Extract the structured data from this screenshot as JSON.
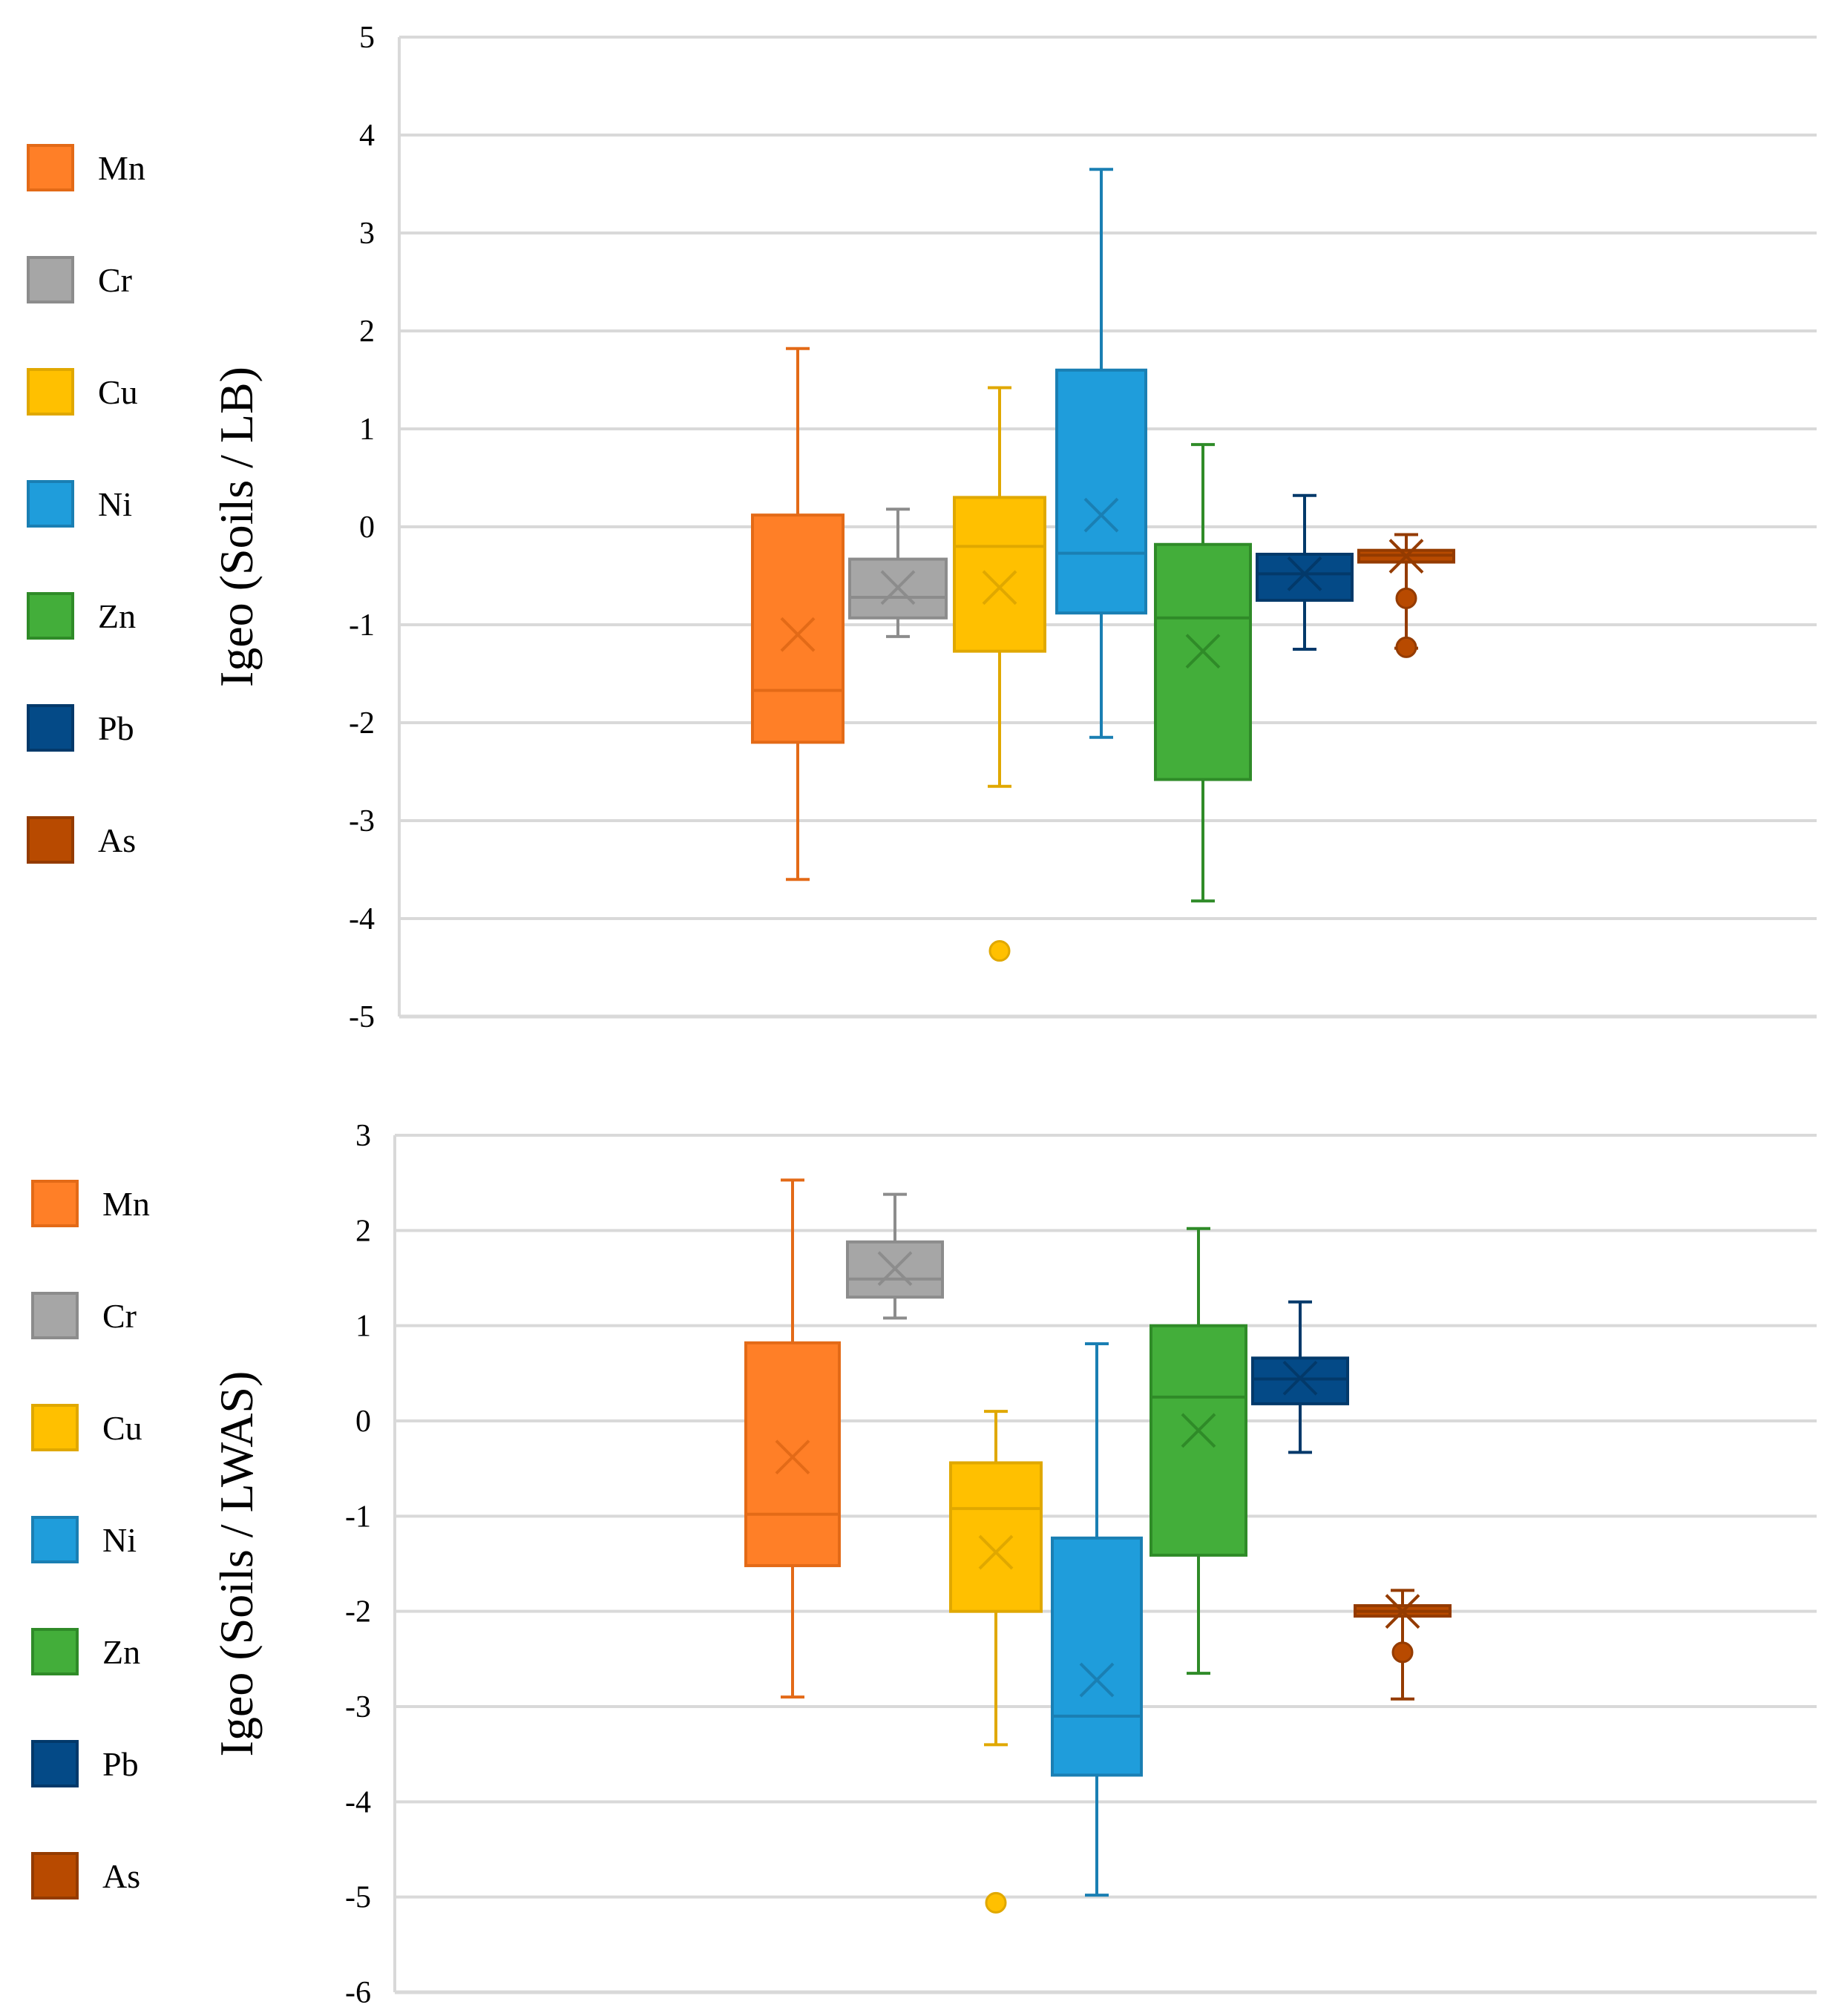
{
  "chart_data": [
    {
      "type": "box",
      "ylabel": "Igeo (Soils / LB)",
      "ylim": [
        -5,
        5
      ],
      "yticks": [
        5,
        4,
        3,
        2,
        1,
        0,
        -1,
        -2,
        -3,
        -4,
        -5
      ],
      "grid": true,
      "legend_position": "left",
      "series": [
        {
          "name": "Mn",
          "color": "#FF7F27",
          "edge": "#E36A17",
          "min": -3.6,
          "q1": -2.2,
          "median": -1.67,
          "q3": 0.12,
          "max": 1.82,
          "mean": -1.1,
          "outliers": []
        },
        {
          "name": "Cr",
          "color": "#A6A6A6",
          "edge": "#8C8C8C",
          "min": -1.12,
          "q1": -0.93,
          "median": -0.72,
          "q3": -0.33,
          "max": 0.18,
          "mean": -0.62,
          "outliers": []
        },
        {
          "name": "Cu",
          "color": "#FFC000",
          "edge": "#E0A800",
          "min": -2.65,
          "q1": -1.27,
          "median": -0.2,
          "q3": 0.3,
          "max": 1.42,
          "mean": -0.62,
          "outliers": [
            -4.33
          ]
        },
        {
          "name": "Ni",
          "color": "#1F9DDB",
          "edge": "#1A7FB3",
          "min": -2.15,
          "q1": -0.88,
          "median": -0.27,
          "q3": 1.6,
          "max": 3.65,
          "mean": 0.12,
          "outliers": []
        },
        {
          "name": "Zn",
          "color": "#43AE3A",
          "edge": "#2F8B28",
          "min": -3.82,
          "q1": -2.58,
          "median": -0.93,
          "q3": -0.18,
          "max": 0.84,
          "mean": -1.27,
          "outliers": []
        },
        {
          "name": "Pb",
          "color": "#044A87",
          "edge": "#03396A",
          "min": -1.25,
          "q1": -0.75,
          "median": -0.48,
          "q3": -0.28,
          "max": 0.32,
          "mean": -0.48,
          "outliers": []
        },
        {
          "name": "As",
          "color": "#B84A00",
          "edge": "#943B00",
          "min": -1.24,
          "q1": -0.36,
          "median": -0.29,
          "q3": -0.24,
          "max": -0.08,
          "mean": -0.3,
          "outliers": [
            -0.73,
            -1.23
          ]
        }
      ]
    },
    {
      "type": "box",
      "ylabel": "Igeo (Soils / LWAS)",
      "ylim": [
        -6,
        3
      ],
      "yticks": [
        3,
        2,
        1,
        0,
        -1,
        -2,
        -3,
        -4,
        -5,
        -6
      ],
      "grid": true,
      "legend_position": "left",
      "series": [
        {
          "name": "Mn",
          "color": "#FF7F27",
          "edge": "#E36A17",
          "min": -2.9,
          "q1": -1.52,
          "median": -0.98,
          "q3": 0.82,
          "max": 2.53,
          "mean": -0.38,
          "outliers": []
        },
        {
          "name": "Cr",
          "color": "#A6A6A6",
          "edge": "#8C8C8C",
          "min": 1.08,
          "q1": 1.3,
          "median": 1.49,
          "q3": 1.88,
          "max": 2.38,
          "mean": 1.6,
          "outliers": []
        },
        {
          "name": "Cu",
          "color": "#FFC000",
          "edge": "#E0A800",
          "min": -3.4,
          "q1": -2.0,
          "median": -0.92,
          "q3": -0.44,
          "max": 0.1,
          "mean": -1.38,
          "outliers": [
            -5.06
          ]
        },
        {
          "name": "Ni",
          "color": "#1F9DDB",
          "edge": "#1A7FB3",
          "min": -4.98,
          "q1": -3.72,
          "median": -3.1,
          "q3": -1.23,
          "max": 0.81,
          "mean": -2.72,
          "outliers": []
        },
        {
          "name": "Zn",
          "color": "#43AE3A",
          "edge": "#2F8B28",
          "min": -2.65,
          "q1": -1.41,
          "median": 0.25,
          "q3": 1.0,
          "max": 2.02,
          "mean": -0.1,
          "outliers": []
        },
        {
          "name": "Pb",
          "color": "#044A87",
          "edge": "#03396A",
          "min": -0.33,
          "q1": 0.18,
          "median": 0.44,
          "q3": 0.66,
          "max": 1.25,
          "mean": 0.45,
          "outliers": []
        },
        {
          "name": "As",
          "color": "#B84A00",
          "edge": "#943B00",
          "min": -2.92,
          "q1": -2.05,
          "median": -2.0,
          "q3": -1.94,
          "max": -1.78,
          "mean": -2.0,
          "outliers": [
            -2.43
          ]
        }
      ]
    }
  ]
}
